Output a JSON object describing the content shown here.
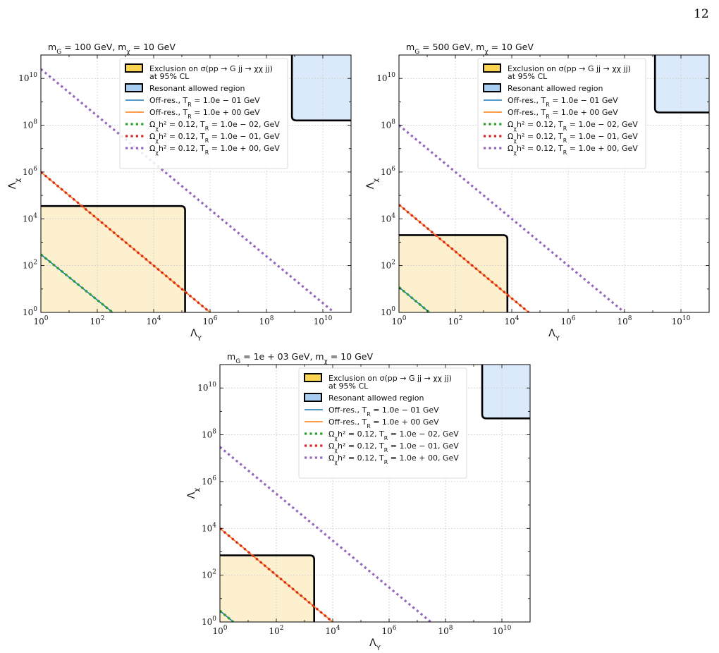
{
  "page": {
    "number": "12"
  },
  "legend": {
    "entries": [
      {
        "kind": "patch",
        "color": "#fbd552",
        "lines": [
          "Exclusion on σ(pp → G jj → χχ jj)",
          "at 95% CL"
        ]
      },
      {
        "kind": "patch",
        "color": "#a8cdf3",
        "lines": [
          "Resonant allowed region"
        ]
      },
      {
        "kind": "line",
        "style": "solid",
        "color": "#1f77b4",
        "lines": [
          "Off-res., T_R = 1.0e − 01 GeV"
        ]
      },
      {
        "kind": "line",
        "style": "solid",
        "color": "#ff7f0e",
        "lines": [
          "Off-res., T_R = 1.0e + 00 GeV"
        ]
      },
      {
        "kind": "line",
        "style": "dotted",
        "color": "#2ca02c",
        "lines": [
          "Ω_χh² = 0.12, T_R = 1.0e − 02, GeV"
        ]
      },
      {
        "kind": "line",
        "style": "dotted",
        "color": "#d62728",
        "lines": [
          "Ω_χh² = 0.12, T_R = 1.0e − 01, GeV"
        ]
      },
      {
        "kind": "line",
        "style": "dotted",
        "color": "#9467bd",
        "lines": [
          "Ω_χh² = 0.12, T_R = 1.0e + 00, GeV"
        ]
      }
    ]
  },
  "chart_data": [
    {
      "type": "line",
      "title": "m_G = 100 GeV, m_χ = 10 GeV",
      "xlabel": "Λ_Y",
      "ylabel": "Λ_χ",
      "xscale": "log",
      "yscale": "log",
      "xlim": [
        1,
        100000000000.0
      ],
      "ylim": [
        1,
        100000000000.0
      ],
      "xtick_labels": [
        "10^0",
        "10^2",
        "10^4",
        "10^6",
        "10^8",
        "10^10"
      ],
      "ytick_labels": [
        "10^0",
        "10^2",
        "10^4",
        "10^6",
        "10^8",
        "10^10"
      ],
      "grid": true,
      "legend_position": "top-right",
      "exclusion_region": {
        "x_max": 130000.0,
        "y_max": 35000.0,
        "color": "#fdf0cf"
      },
      "resonant_region": {
        "x_min": 800000000.0,
        "y_min": 160000000.0,
        "color": "#dbeafb"
      },
      "series": [
        {
          "name": "Off-res., T_R = 1.0e − 01 GeV",
          "color": "#1f77b4",
          "style": "solid",
          "x": [
            1,
            350
          ],
          "y": [
            300,
            1
          ]
        },
        {
          "name": "Off-res., T_R = 1.0e + 00 GeV",
          "color": "#ff7f0e",
          "style": "solid",
          "x": [
            1,
            1000000.0
          ],
          "y": [
            1000000.0,
            1
          ]
        },
        {
          "name": "Ω_χh² = 0.12, T_R = 1.0e − 02, GeV",
          "color": "#2ca02c",
          "style": "dotted",
          "x": [
            1,
            350
          ],
          "y": [
            300,
            1
          ]
        },
        {
          "name": "Ω_χh² = 0.12, T_R = 1.0e − 01, GeV",
          "color": "#d62728",
          "style": "dotted",
          "x": [
            1,
            1000000.0
          ],
          "y": [
            1000000.0,
            1
          ]
        },
        {
          "name": "Ω_χh² = 0.12, T_R = 1.0e + 00, GeV",
          "color": "#9467bd",
          "style": "dotted",
          "x": [
            1,
            25000000000.0
          ],
          "y": [
            25000000000.0,
            1
          ]
        }
      ]
    },
    {
      "type": "line",
      "title": "m_G = 500 GeV, m_χ = 10 GeV",
      "xlabel": "Λ_Y",
      "ylabel": "Λ_χ",
      "xscale": "log",
      "yscale": "log",
      "xlim": [
        1,
        100000000000.0
      ],
      "ylim": [
        1,
        100000000000.0
      ],
      "xtick_labels": [
        "10^0",
        "10^2",
        "10^4",
        "10^6",
        "10^8",
        "10^10"
      ],
      "ytick_labels": [
        "10^0",
        "10^2",
        "10^4",
        "10^6",
        "10^8",
        "10^10"
      ],
      "grid": true,
      "legend_position": "top-right",
      "exclusion_region": {
        "x_max": 7000.0,
        "y_max": 2000.0,
        "color": "#fdf0cf"
      },
      "resonant_region": {
        "x_min": 1200000000.0,
        "y_min": 350000000.0,
        "color": "#dbeafb"
      },
      "series": [
        {
          "name": "Off-res., T_R = 1.0e − 01 GeV",
          "color": "#1f77b4",
          "style": "solid",
          "x": [
            1,
            12
          ],
          "y": [
            12,
            1
          ]
        },
        {
          "name": "Off-res., T_R = 1.0e + 00 GeV",
          "color": "#ff7f0e",
          "style": "solid",
          "x": [
            1,
            40000.0
          ],
          "y": [
            40000.0,
            1
          ]
        },
        {
          "name": "Ω_χh² = 0.12, T_R = 1.0e − 02, GeV",
          "color": "#2ca02c",
          "style": "dotted",
          "x": [
            1,
            12
          ],
          "y": [
            12,
            1
          ]
        },
        {
          "name": "Ω_χh² = 0.12, T_R = 1.0e − 01, GeV",
          "color": "#d62728",
          "style": "dotted",
          "x": [
            1,
            40000.0
          ],
          "y": [
            40000.0,
            1
          ]
        },
        {
          "name": "Ω_χh² = 0.12, T_R = 1.0e + 00, GeV",
          "color": "#9467bd",
          "style": "dotted",
          "x": [
            1,
            100000000.0
          ],
          "y": [
            100000000.0,
            1
          ]
        }
      ]
    },
    {
      "type": "line",
      "title": "m_G = 1e + 03 GeV, m_χ = 10 GeV",
      "xlabel": "Λ_Y",
      "ylabel": "Λ_χ",
      "xscale": "log",
      "yscale": "log",
      "xlim": [
        1,
        100000000000.0
      ],
      "ylim": [
        1,
        100000000000.0
      ],
      "xtick_labels": [
        "10^0",
        "10^2",
        "10^4",
        "10^6",
        "10^8",
        "10^10"
      ],
      "ytick_labels": [
        "10^0",
        "10^2",
        "10^4",
        "10^6",
        "10^8",
        "10^10"
      ],
      "grid": true,
      "legend_position": "top-right",
      "exclusion_region": {
        "x_max": 2200.0,
        "y_max": 700,
        "color": "#fdf0cf"
      },
      "resonant_region": {
        "x_min": 2000000000.0,
        "y_min": 500000000.0,
        "color": "#dbeafb"
      },
      "series": [
        {
          "name": "Off-res., T_R = 1.0e − 01 GeV",
          "color": "#1f77b4",
          "style": "solid",
          "x": [
            1,
            3
          ],
          "y": [
            3,
            1
          ]
        },
        {
          "name": "Off-res., T_R = 1.0e + 00 GeV",
          "color": "#ff7f0e",
          "style": "solid",
          "x": [
            1,
            10000.0
          ],
          "y": [
            10000.0,
            1
          ]
        },
        {
          "name": "Ω_χh² = 0.12, T_R = 1.0e − 02, GeV",
          "color": "#2ca02c",
          "style": "dotted",
          "x": [
            1,
            3
          ],
          "y": [
            3,
            1
          ]
        },
        {
          "name": "Ω_χh² = 0.12, T_R = 1.0e − 01, GeV",
          "color": "#d62728",
          "style": "dotted",
          "x": [
            1,
            10000.0
          ],
          "y": [
            10000.0,
            1
          ]
        },
        {
          "name": "Ω_χh² = 0.12, T_R = 1.0e + 00, GeV",
          "color": "#9467bd",
          "style": "dotted",
          "x": [
            1,
            30000000.0
          ],
          "y": [
            30000000.0,
            1
          ]
        }
      ]
    }
  ]
}
